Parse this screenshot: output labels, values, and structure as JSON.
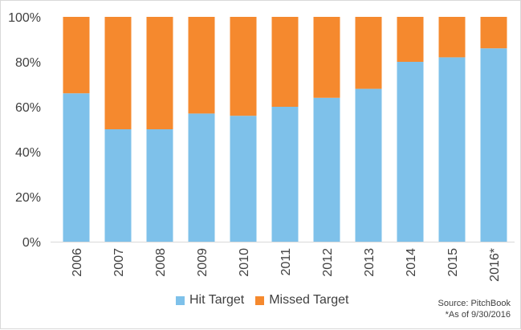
{
  "chart_data": {
    "type": "bar",
    "stacked": true,
    "categories": [
      "2006",
      "2007",
      "2008",
      "2009",
      "2010",
      "2011",
      "2012",
      "2013",
      "2014",
      "2015",
      "2016*"
    ],
    "series": [
      {
        "name": "Hit Target",
        "values": [
          66,
          50,
          50,
          57,
          56,
          60,
          64,
          68,
          80,
          82,
          86
        ],
        "color": "#7ec1ea"
      },
      {
        "name": "Missed Target",
        "values": [
          34,
          50,
          50,
          43,
          44,
          40,
          36,
          32,
          20,
          18,
          14
        ],
        "color": "#f5892e"
      }
    ],
    "yticks": [
      "0%",
      "20%",
      "40%",
      "60%",
      "80%",
      "100%"
    ],
    "ylim": [
      0,
      100
    ],
    "grid": false,
    "legend": "bottom",
    "source": "Source: PitchBook",
    "footnote": "*As of 9/30/2016"
  }
}
